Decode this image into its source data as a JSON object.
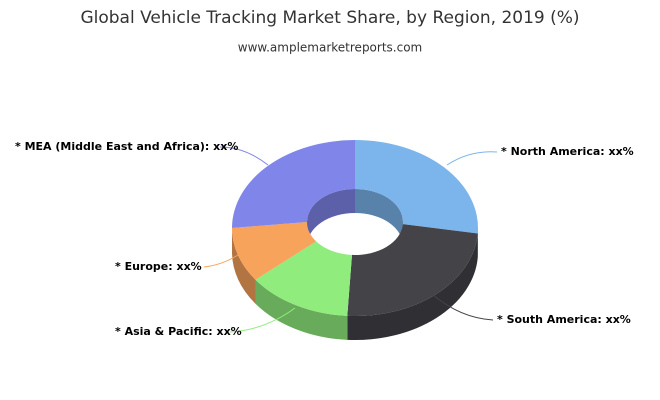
{
  "chart_data": {
    "type": "donut3d",
    "title": "Global Vehicle Tracking Market Share, by Region, 2019 (%)",
    "subtitle": "www.amplemarketreports.com",
    "labels": [
      "* North America: xx%",
      "* South America: xx%",
      "* Asia & Pacific: xx%",
      "* Europe: xx%",
      "* MEA (Middle East and Africa): xx%"
    ],
    "values": [
      26,
      25,
      14,
      10,
      25
    ],
    "colors": [
      "#7cb5ec",
      "#434348",
      "#90ed7d",
      "#f7a35c",
      "#8085e9"
    ]
  }
}
